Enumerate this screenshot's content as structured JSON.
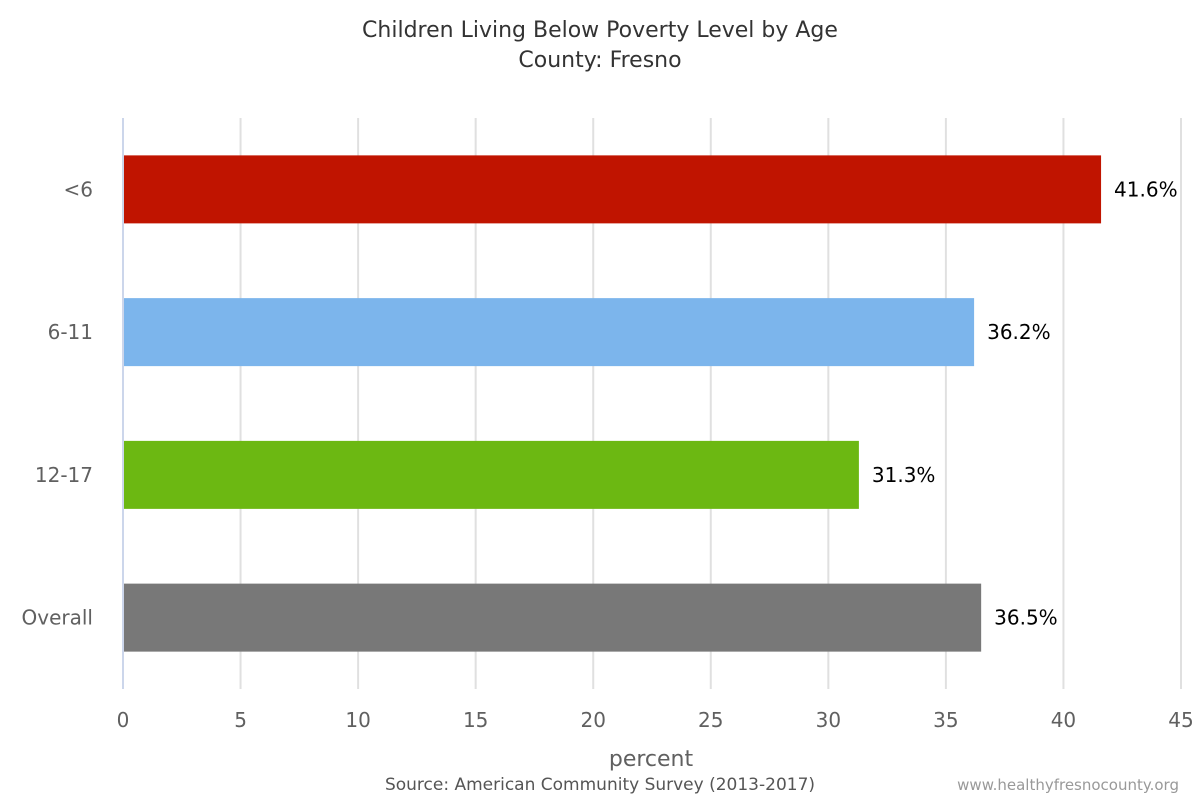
{
  "chart_data": {
    "type": "bar",
    "orientation": "horizontal",
    "title": "Children Living Below Poverty Level by Age",
    "subtitle": "County: Fresno",
    "categories": [
      "<6",
      "6-11",
      "12-17",
      "Overall"
    ],
    "values": [
      41.6,
      36.2,
      31.3,
      36.5
    ],
    "data_labels": [
      "41.6%",
      "36.2%",
      "31.3%",
      "36.5%"
    ],
    "colors": [
      "#c01400",
      "#7cb5ec",
      "#6cb812",
      "#787878"
    ],
    "xlabel": "percent",
    "ylabel": "",
    "xlim": [
      0,
      45
    ],
    "x_ticks": [
      0,
      5,
      10,
      15,
      20,
      25,
      30,
      35,
      40,
      45
    ],
    "grid": true,
    "legend": "none"
  },
  "source": "Source: American Community Survey (2013-2017)",
  "credit": "www.healthyfresnocounty.org"
}
